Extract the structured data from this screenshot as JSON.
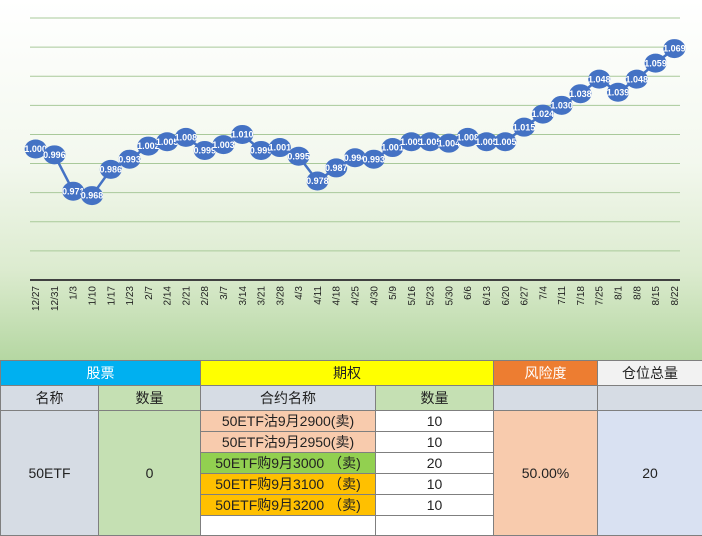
{
  "chart_data": {
    "type": "line",
    "title": "",
    "xlabel": "",
    "ylabel": "",
    "categories": [
      "12/27",
      "12/31",
      "1/3",
      "1/10",
      "1/17",
      "1/23",
      "2/7",
      "2/14",
      "2/21",
      "2/28",
      "3/7",
      "3/14",
      "3/21",
      "3/28",
      "4/3",
      "4/11",
      "4/18",
      "4/25",
      "4/30",
      "5/9",
      "5/16",
      "5/23",
      "5/30",
      "6/6",
      "6/13",
      "6/20",
      "6/27",
      "7/4",
      "7/11",
      "7/18",
      "7/25",
      "8/1",
      "8/8",
      "8/15",
      "8/22"
    ],
    "x_dense": [
      "12/27",
      "12/31",
      "1/3",
      "1/10",
      "1/17",
      "1/23",
      "2/7",
      "2/14",
      "2/21",
      "2/28",
      "3/7",
      "3/14",
      "3/21",
      "3/28",
      "4/3",
      "4/11",
      "4/18",
      "4/25",
      "4/30",
      "5/9",
      "5/16",
      "5/23",
      "5/30",
      "6/6",
      "6/13",
      "6/20",
      "6/27",
      "7/4",
      "7/11",
      "7/18",
      "7/25",
      "8/1",
      "8/8",
      "8/15",
      "8/22"
    ],
    "series": [
      {
        "values": [
          1.0,
          0.996,
          0.971,
          0.968,
          0.986,
          0.993,
          1.002,
          1.005,
          1.008,
          0.999,
          1.003,
          1.01,
          0.999,
          1.001,
          0.995,
          0.978,
          0.987,
          0.994,
          0.993,
          1.001,
          1.005,
          1.005,
          1.004,
          1.008,
          1.005,
          1.005,
          1.015,
          1.024,
          1.03,
          1.038,
          1.048,
          1.039,
          1.048,
          1.059,
          1.069
        ],
        "labels": [
          "1.000",
          "0.996",
          "0.971",
          "0.968",
          "0.986",
          "0.993",
          "1.002",
          "1.005",
          "1.008",
          "0.999",
          "1.003",
          "1.010",
          "0.999",
          "1.001",
          "0.995",
          "0.978",
          "0.987",
          "0.994",
          "0.993",
          "1.001",
          "1.005",
          "1.005",
          "1.004",
          "1.008",
          "1.005",
          "1.005",
          "1.015",
          "1.024",
          "1.030",
          "1.038",
          "1.048",
          "1.039",
          "1.048",
          "1.059",
          "1.069"
        ],
        "color": "#4472c4"
      }
    ],
    "ylim": [
      0.91,
      1.09
    ],
    "grid": true,
    "legend": "none"
  },
  "table": {
    "headers": {
      "stock": "股票",
      "option": "期权",
      "risk": "风险度",
      "total": "仓位总量"
    },
    "subheaders": {
      "name": "名称",
      "qty": "数量",
      "contract": "合约名称",
      "contract_qty": "数量"
    },
    "stock": {
      "name": "50ETF",
      "qty": "0"
    },
    "options": [
      {
        "name": "50ETF沽9月2900(卖)",
        "qty": "10"
      },
      {
        "name": "50ETF沽9月2950(卖)",
        "qty": "10"
      },
      {
        "name": "50ETF购9月3000 （卖)",
        "qty": "20"
      },
      {
        "name": "50ETF购9月3100 （卖)",
        "qty": "10"
      },
      {
        "name": "50ETF购9月3200 （卖)",
        "qty": "10"
      }
    ],
    "risk": "50.00%",
    "total": "20"
  }
}
